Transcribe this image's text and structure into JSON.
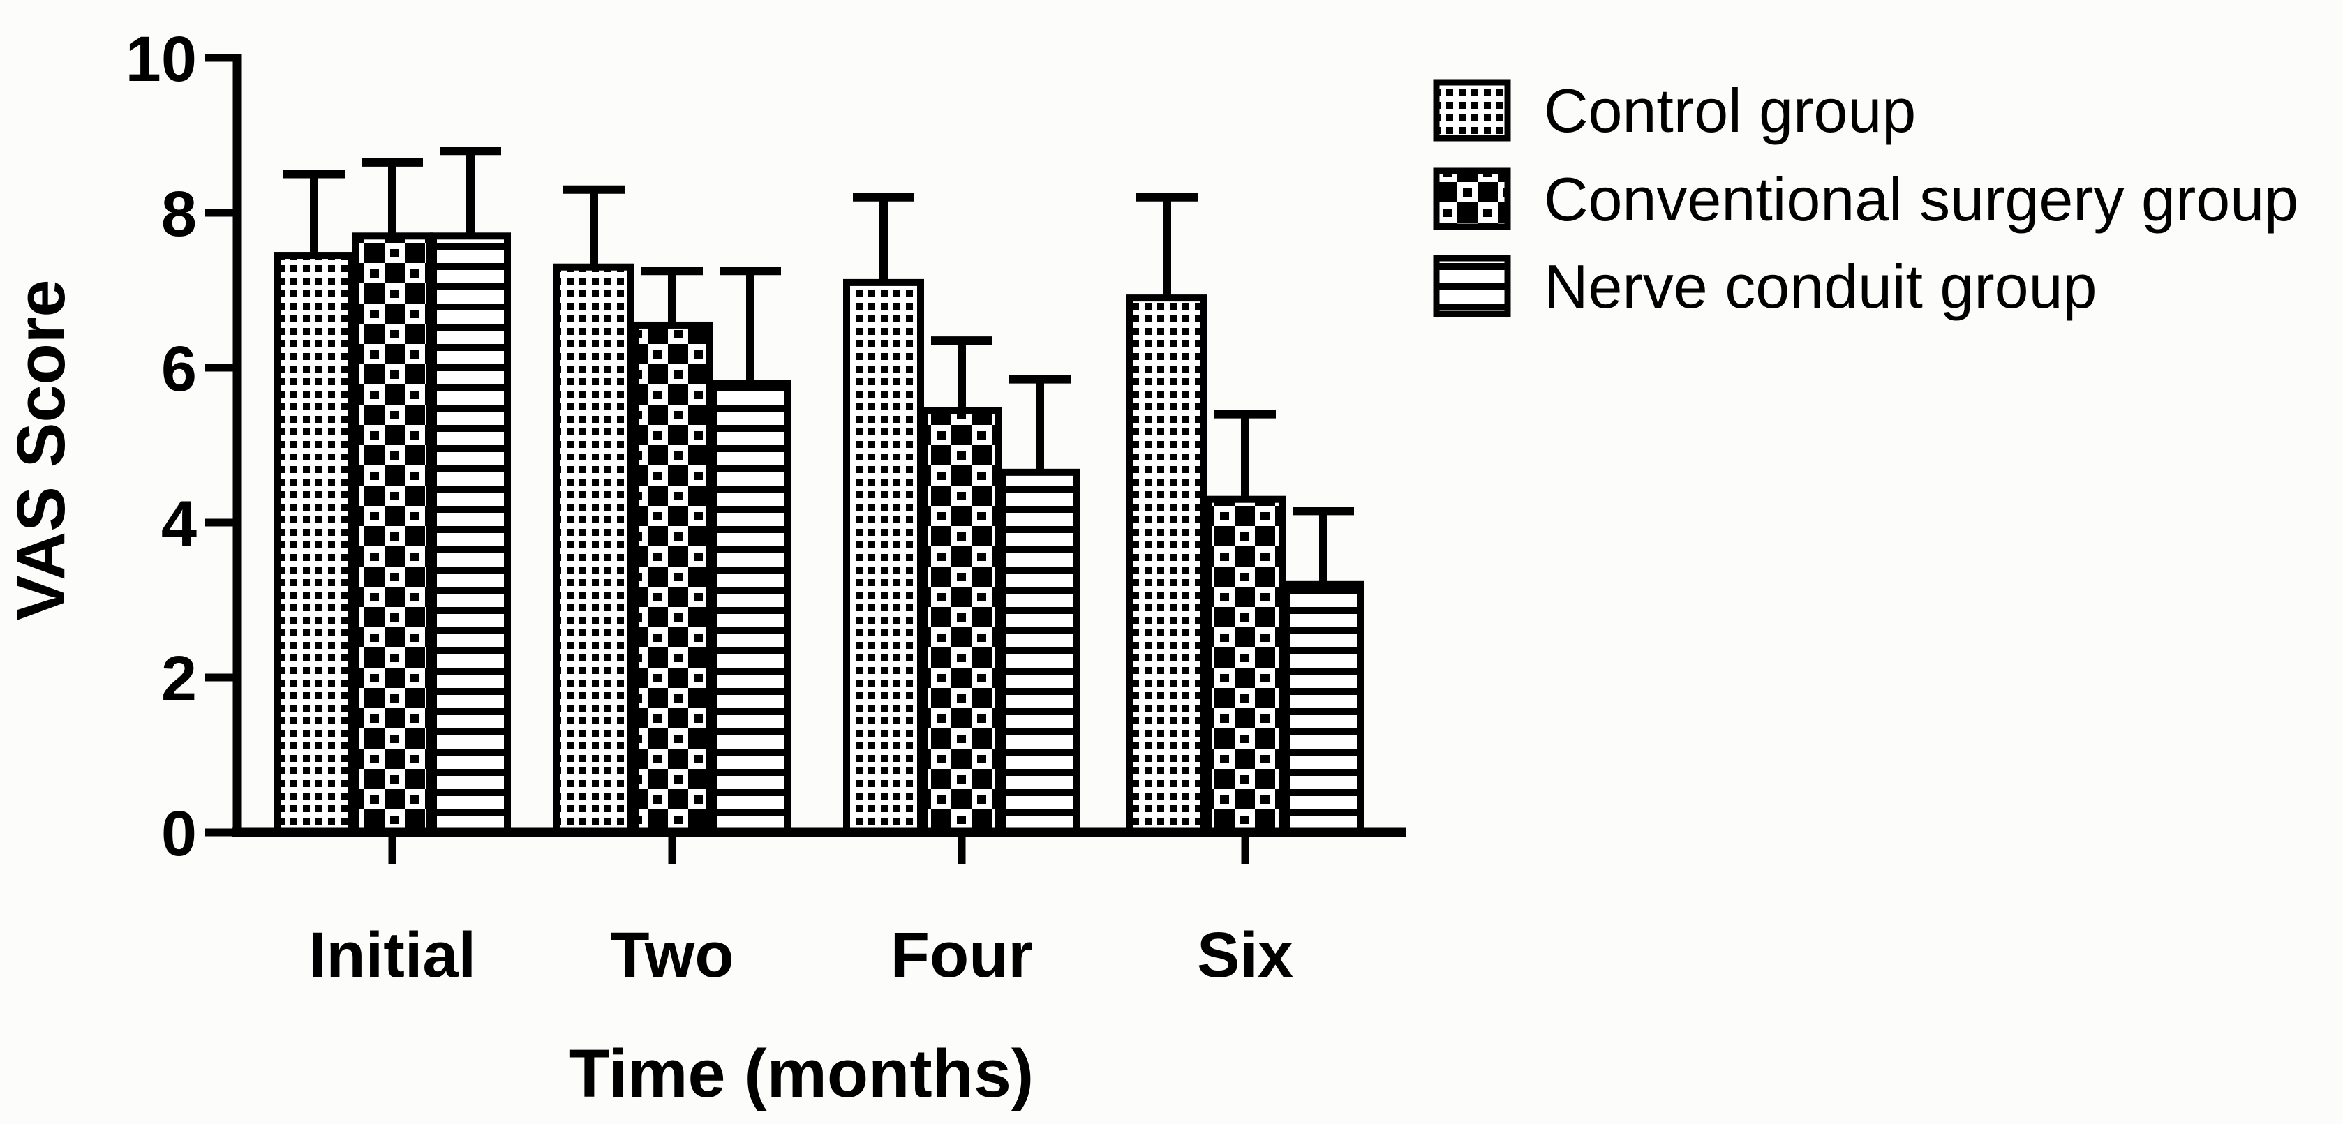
{
  "figure": {
    "background_color": "#fcfcfa",
    "ink_color": "#000000"
  },
  "y_axis": {
    "title": "VAS Score",
    "range": [
      0,
      10
    ],
    "tick_values": [
      0,
      2,
      4,
      6,
      8,
      10
    ],
    "tick_labels": [
      "0",
      "2",
      "4",
      "6",
      "8",
      "10"
    ]
  },
  "x_axis": {
    "title": "Time (months)",
    "categories": [
      "Initial",
      "Two",
      "Four",
      "Six"
    ]
  },
  "legend": {
    "position": "top-right",
    "items": [
      {
        "label": "Control group",
        "pattern": "fine-checker"
      },
      {
        "label": "Conventional surgery group",
        "pattern": "coarse-checker"
      },
      {
        "label": "Nerve conduit group",
        "pattern": "horizontal-lines"
      }
    ]
  },
  "chart_data": {
    "type": "bar",
    "title": "",
    "xlabel": "Time (months)",
    "ylabel": "VAS Score",
    "ylim": [
      0,
      10
    ],
    "grid": false,
    "error_bars": "upper-only",
    "legend_position": "top-right",
    "categories": [
      "Initial",
      "Two",
      "Four",
      "Six"
    ],
    "series": [
      {
        "name": "Control group",
        "pattern": "fine-checker",
        "values": [
          7.45,
          7.3,
          7.1,
          6.9
        ],
        "sd_upper": [
          1.05,
          1.0,
          1.1,
          1.3
        ]
      },
      {
        "name": "Conventional surgery group",
        "pattern": "coarse-checker",
        "values": [
          7.7,
          6.55,
          5.45,
          4.3
        ],
        "sd_upper": [
          0.95,
          0.7,
          0.9,
          1.1
        ]
      },
      {
        "name": "Nerve conduit group",
        "pattern": "horizontal-lines",
        "values": [
          7.7,
          5.8,
          4.65,
          3.2
        ],
        "sd_upper": [
          1.1,
          1.45,
          1.2,
          0.95
        ]
      }
    ]
  }
}
